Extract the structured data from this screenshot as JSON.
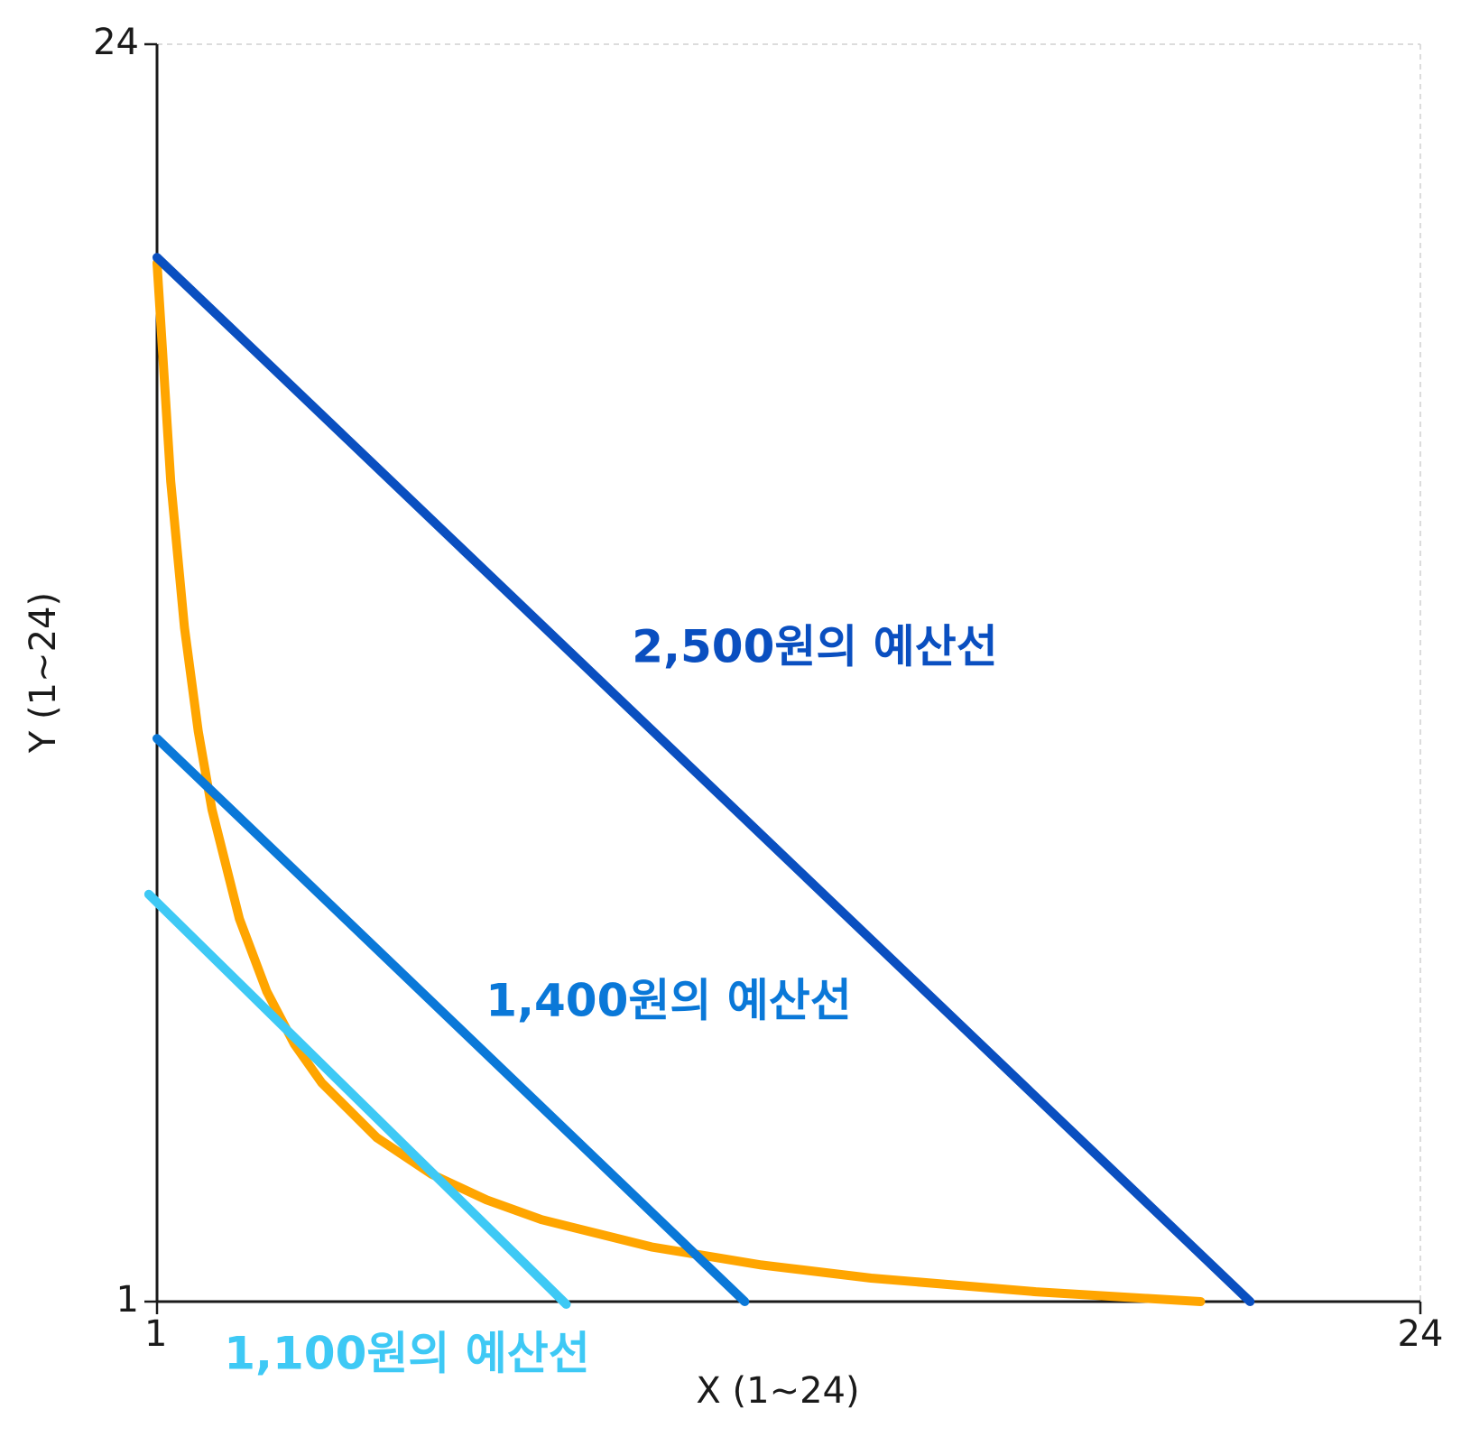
{
  "chart_data": {
    "type": "line",
    "x_label": "X (1~24)",
    "y_label": "Y (1~24)",
    "xlim": [
      1,
      24
    ],
    "ylim": [
      1,
      24
    ],
    "xticks": [
      1,
      24
    ],
    "yticks": [
      1,
      24
    ],
    "grid": true,
    "series": [
      {
        "color": "#ffa500",
        "x": [
          1,
          1.25,
          1.5,
          1.75,
          2,
          2.5,
          3,
          3.5,
          4,
          5,
          6,
          7,
          8,
          10,
          12,
          14,
          17,
          20
        ],
        "values": [
          20,
          16,
          13.33,
          11.43,
          10,
          8,
          6.67,
          5.71,
          5,
          4,
          3.33,
          2.86,
          2.5,
          2,
          1.67,
          1.43,
          1.18,
          1
        ]
      },
      {
        "name": "2,500원의 예산선",
        "color": "#0a4fc0",
        "x": [
          1,
          20.9
        ],
        "values": [
          20.1,
          1
        ]
      },
      {
        "name": "1,400원의 예산선",
        "color": "#0a78d8",
        "x": [
          1,
          11.7
        ],
        "values": [
          11.3,
          1
        ]
      },
      {
        "name": "1,100원의 예산선",
        "color": "#3ec9f5",
        "x": [
          0.85,
          8.45
        ],
        "values": [
          8.45,
          0.95
        ]
      }
    ]
  }
}
